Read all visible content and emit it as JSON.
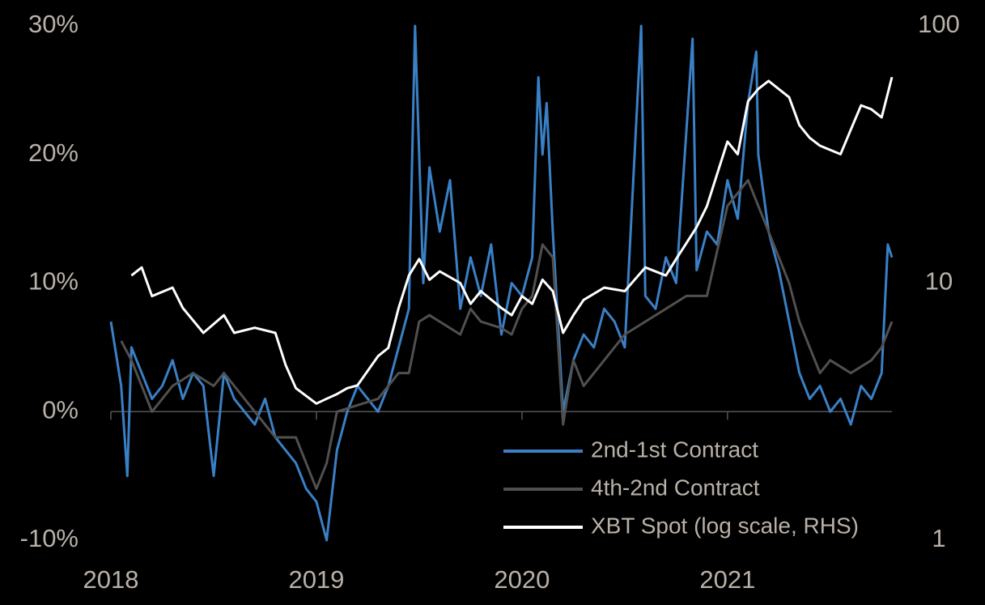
{
  "chart_data": {
    "type": "line",
    "xlim": [
      2018,
      2021.8
    ],
    "xticks": [
      2018,
      2019,
      2020,
      2021
    ],
    "ylim": [
      -10,
      30
    ],
    "yticks": [
      {
        "value": -10,
        "label": "-10%"
      },
      {
        "value": 0,
        "label": "0%"
      },
      {
        "value": 10,
        "label": "10%"
      },
      {
        "value": 20,
        "label": "20%"
      },
      {
        "value": 30,
        "label": "30%"
      }
    ],
    "y2lim": [
      1,
      100
    ],
    "y2ticks": [
      1,
      10,
      100
    ],
    "y2log": true,
    "legend": "lower right",
    "series": [
      {
        "name": "2nd-1st Contract",
        "color": "#3a80c6",
        "x": [
          2018.0,
          2018.05,
          2018.08,
          2018.1,
          2018.15,
          2018.2,
          2018.25,
          2018.3,
          2018.35,
          2018.4,
          2018.45,
          2018.5,
          2018.55,
          2018.6,
          2018.65,
          2018.7,
          2018.75,
          2018.8,
          2018.85,
          2018.9,
          2018.95,
          2019.0,
          2019.05,
          2019.1,
          2019.15,
          2019.2,
          2019.25,
          2019.3,
          2019.35,
          2019.4,
          2019.45,
          2019.48,
          2019.52,
          2019.55,
          2019.6,
          2019.65,
          2019.7,
          2019.75,
          2019.8,
          2019.85,
          2019.9,
          2019.95,
          2020.0,
          2020.05,
          2020.08,
          2020.1,
          2020.12,
          2020.15,
          2020.2,
          2020.25,
          2020.3,
          2020.35,
          2020.4,
          2020.45,
          2020.5,
          2020.58,
          2020.6,
          2020.65,
          2020.7,
          2020.75,
          2020.83,
          2020.85,
          2020.9,
          2020.95,
          2021.0,
          2021.05,
          2021.1,
          2021.14,
          2021.15,
          2021.2,
          2021.25,
          2021.3,
          2021.35,
          2021.4,
          2021.45,
          2021.5,
          2021.55,
          2021.6,
          2021.65,
          2021.7,
          2021.75,
          2021.78,
          2021.8
        ],
        "values": [
          7,
          2,
          -5,
          5,
          3,
          1,
          2,
          4,
          1,
          3,
          2,
          -5,
          3,
          1,
          0,
          -1,
          1,
          -2,
          -3,
          -4,
          -6,
          -7,
          -10,
          -3,
          0,
          2,
          1,
          0,
          2,
          5,
          8,
          30,
          10,
          19,
          14,
          18,
          8,
          12,
          9,
          13,
          6,
          10,
          9,
          12,
          26,
          20,
          24,
          14,
          0,
          4,
          6,
          5,
          8,
          7,
          5,
          30,
          9,
          8,
          12,
          10,
          29,
          11,
          14,
          13,
          18,
          15,
          24,
          28,
          20,
          14,
          11,
          7,
          3,
          1,
          2,
          0,
          1,
          -1,
          2,
          1,
          3,
          13,
          12
        ]
      },
      {
        "name": "4th-2nd Contract",
        "color": "#505050",
        "x": [
          2018.05,
          2018.1,
          2018.15,
          2018.2,
          2018.3,
          2018.4,
          2018.5,
          2018.55,
          2018.6,
          2018.7,
          2018.8,
          2018.9,
          2019.0,
          2019.05,
          2019.1,
          2019.2,
          2019.3,
          2019.4,
          2019.45,
          2019.5,
          2019.55,
          2019.6,
          2019.7,
          2019.75,
          2019.8,
          2019.9,
          2019.95,
          2020.0,
          2020.05,
          2020.1,
          2020.15,
          2020.2,
          2020.25,
          2020.3,
          2020.4,
          2020.5,
          2020.6,
          2020.7,
          2020.8,
          2020.9,
          2021.0,
          2021.1,
          2021.15,
          2021.2,
          2021.3,
          2021.35,
          2021.4,
          2021.45,
          2021.5,
          2021.6,
          2021.7,
          2021.75,
          2021.8
        ],
        "values": [
          5.5,
          4,
          2,
          0,
          2,
          3,
          2,
          3,
          2,
          0,
          -2,
          -2,
          -6,
          -4,
          0,
          0.5,
          1,
          3,
          3,
          7,
          7.5,
          7,
          6,
          8,
          7,
          6.5,
          6,
          8,
          9,
          13,
          12,
          -1,
          4,
          2,
          4,
          6,
          7,
          8,
          9,
          9,
          16,
          18,
          16,
          14,
          10,
          7,
          5,
          3,
          4,
          3,
          4,
          5,
          7
        ]
      },
      {
        "name": "XBT Spot (log scale, RHS)",
        "color": "#ffffff",
        "axis": "y2",
        "x": [
          2018.1,
          2018.15,
          2018.2,
          2018.3,
          2018.35,
          2018.45,
          2018.55,
          2018.6,
          2018.7,
          2018.8,
          2018.85,
          2018.9,
          2019.0,
          2019.05,
          2019.1,
          2019.15,
          2019.2,
          2019.3,
          2019.35,
          2019.4,
          2019.45,
          2019.5,
          2019.55,
          2019.6,
          2019.7,
          2019.75,
          2019.8,
          2019.9,
          2019.95,
          2020.0,
          2020.05,
          2020.1,
          2020.15,
          2020.2,
          2020.25,
          2020.3,
          2020.4,
          2020.5,
          2020.6,
          2020.7,
          2020.75,
          2020.8,
          2020.85,
          2020.9,
          2021.0,
          2021.05,
          2021.1,
          2021.15,
          2021.2,
          2021.3,
          2021.35,
          2021.4,
          2021.45,
          2021.55,
          2021.6,
          2021.65,
          2021.7,
          2021.75,
          2021.8
        ],
        "values": [
          10.7,
          11.5,
          8.9,
          9.6,
          8.0,
          6.4,
          7.5,
          6.4,
          6.7,
          6.4,
          4.8,
          3.9,
          3.4,
          3.55,
          3.7,
          3.9,
          4.0,
          5.2,
          5.6,
          8.0,
          10.7,
          12.4,
          10.3,
          11.1,
          10,
          8.3,
          9.3,
          8.0,
          7.5,
          8.9,
          8.3,
          10.3,
          9.3,
          6.4,
          7.5,
          8.6,
          9.6,
          9.3,
          11.5,
          10.7,
          12.4,
          14.3,
          16.5,
          19.9,
          35.5,
          31.7,
          50.9,
          56.9,
          61.1,
          52.8,
          41.1,
          36.7,
          34.2,
          31.7,
          39.5,
          49.1,
          47.4,
          44.1,
          63.2
        ]
      }
    ]
  }
}
